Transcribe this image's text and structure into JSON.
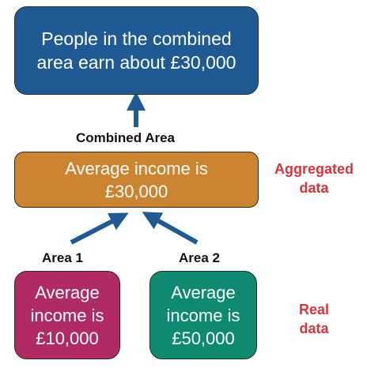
{
  "boxes": {
    "top": {
      "text": "People in the combined\narea earn about £30,000",
      "color": "#1f5a94"
    },
    "combined": {
      "text": "Average income is\n£30,000",
      "color": "#cc8430"
    },
    "area1": {
      "text": "Average\nincome is\n£10,000",
      "color": "#b02a63"
    },
    "area2": {
      "text": "Average\nincome is\n£50,000",
      "color": "#0e8a70"
    }
  },
  "labels": {
    "combined": "Combined Area",
    "area1": "Area 1",
    "area2": "Area 2"
  },
  "side_labels": {
    "aggregated": "Aggregated\ndata",
    "real": "Real\ndata",
    "color": "#d9343a"
  },
  "arrow_color": "#1f5a94"
}
